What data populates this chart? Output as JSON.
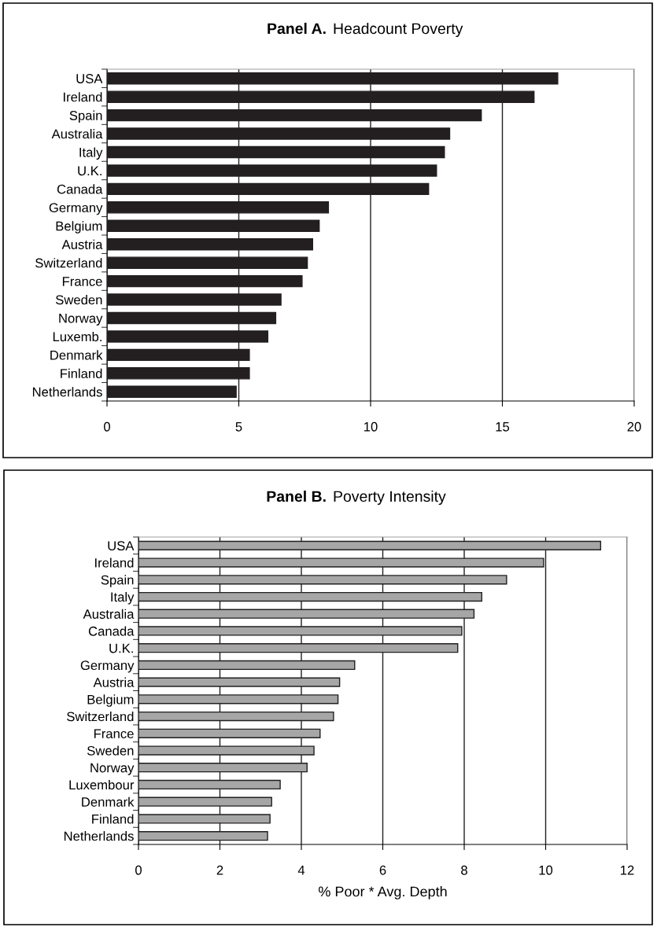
{
  "chart_data": [
    {
      "type": "bar",
      "orientation": "horizontal",
      "title": "Panel A.",
      "subtitle": "Headcount Poverty",
      "categories": [
        "USA",
        "Ireland",
        "Spain",
        "Australia",
        "Italy",
        "U.K.",
        "Canada",
        "Germany",
        "Belgium",
        "Austria",
        "Switzerland",
        "France",
        "Sweden",
        "Norway",
        "Luxemb.",
        "Denmark",
        "Finland",
        "Netherlands"
      ],
      "values": [
        17.1,
        16.2,
        14.2,
        13.0,
        12.8,
        12.5,
        12.2,
        8.4,
        8.05,
        7.8,
        7.6,
        7.4,
        6.6,
        6.4,
        6.1,
        5.4,
        5.4,
        4.9
      ],
      "color": "#231f20",
      "xlim": [
        0,
        20
      ],
      "xticks": [
        0,
        5,
        10,
        15,
        20
      ],
      "grid": "x"
    },
    {
      "type": "bar",
      "orientation": "horizontal",
      "title": "Panel B.",
      "subtitle": "Poverty Intensity",
      "xlabel": "% Poor * Avg. Depth",
      "categories": [
        "USA",
        "Ireland",
        "Spain",
        "Italy",
        "Australia",
        "Canada",
        "U.K.",
        "Germany",
        "Austria",
        "Belgium",
        "Switzerland",
        "France",
        "Sweden",
        "Norway",
        "Luxembour",
        "Denmark",
        "Finland",
        "Netherlands"
      ],
      "values": [
        11.35,
        9.95,
        9.04,
        8.43,
        8.24,
        7.94,
        7.84,
        5.31,
        4.94,
        4.9,
        4.79,
        4.46,
        4.31,
        4.14,
        3.48,
        3.27,
        3.23,
        3.17
      ],
      "color": "#a6a6a6",
      "xlim": [
        0,
        12
      ],
      "xticks": [
        0,
        2,
        4,
        6,
        8,
        10,
        12
      ],
      "grid": "x"
    }
  ]
}
